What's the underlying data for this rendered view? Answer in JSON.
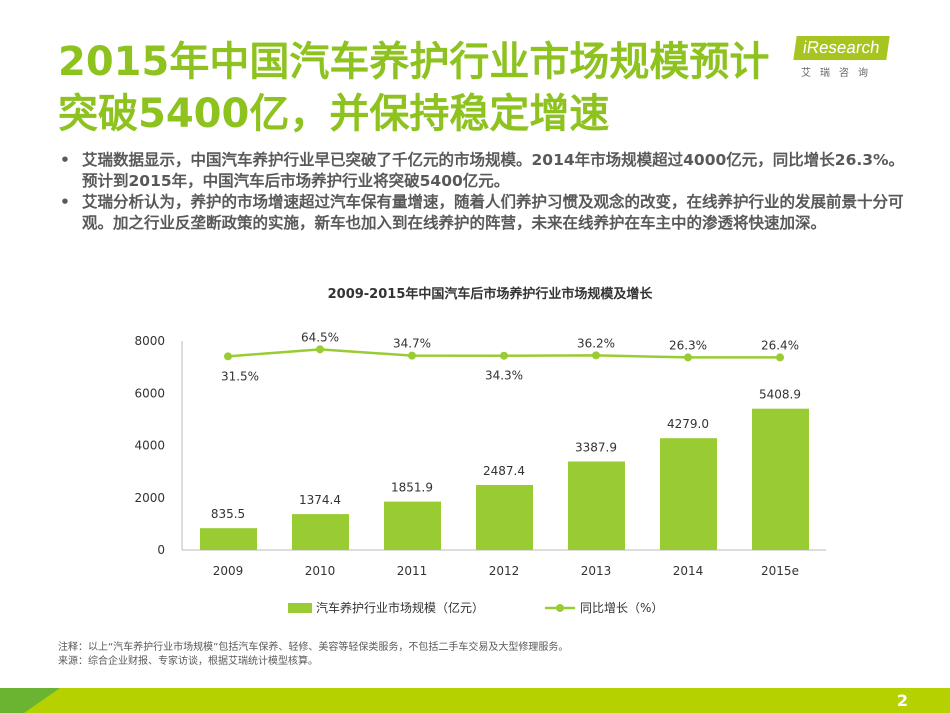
{
  "title": "2015年中国汽车养护行业市场规模预计突破5400亿，并保持稳定增速",
  "logo": {
    "brand": "iResearch",
    "cn": "艾瑞咨询"
  },
  "bullets": [
    "艾瑞数据显示，中国汽车养护行业早已突破了千亿元的市场规模。2014年市场规模超过4000亿元，同比增长26.3%。预计到2015年，中国汽车后市场养护行业将突破5400亿元。",
    "艾瑞分析认为，养护的市场增速超过汽车保有量增速，随着人们养护习惯及观念的改变，在线养护行业的发展前景十分可观。加之行业反垄断政策的实施，新车也加入到在线养护的阵营，未来在线养护在车主中的渗透将快速加深。"
  ],
  "chart_data": {
    "type": "bar+line",
    "title": "2009-2015年中国汽车后市场养护行业市场规模及增长",
    "categories": [
      "2009",
      "2010",
      "2011",
      "2012",
      "2013",
      "2014",
      "2015e"
    ],
    "series": [
      {
        "name": "汽车养护行业市场规模（亿元）",
        "type": "bar",
        "values": [
          835.5,
          1374.4,
          1851.9,
          2487.4,
          3387.9,
          4279.0,
          5408.9
        ],
        "labels": [
          "835.5",
          "1374.4",
          "1851.9",
          "2487.4",
          "3387.9",
          "4279.0",
          "5408.9"
        ],
        "color": "#99cc33"
      },
      {
        "name": "同比增长（%）",
        "type": "line",
        "values": [
          31.5,
          64.5,
          34.7,
          34.3,
          36.2,
          26.3,
          26.4
        ],
        "labels": [
          "31.5%",
          "64.5%",
          "34.7%",
          "34.3%",
          "36.2%",
          "26.3%",
          "26.4%"
        ],
        "color": "#99cc33"
      }
    ],
    "yticks": [
      "0",
      "2000",
      "4000",
      "6000",
      "8000"
    ],
    "ylim": [
      0,
      8000
    ],
    "legend_position": "bottom"
  },
  "notes": [
    "注释：以上“汽车养护行业市场规模”包括汽车保养、轻修、美容等轻保类服务，不包括二手车交易及大型修理服务。",
    "来源：综合企业财报、专家访谈，根据艾瑞统计模型核算。"
  ],
  "page": "2"
}
